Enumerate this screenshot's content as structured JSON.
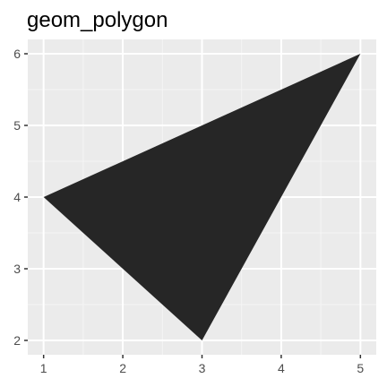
{
  "chart_data": {
    "type": "polygon",
    "title": "geom_polygon",
    "xlabel": "",
    "ylabel": "",
    "xlim": [
      0.8,
      5.2
    ],
    "ylim": [
      1.8,
      6.2
    ],
    "x_ticks": [
      1,
      2,
      3,
      4,
      5
    ],
    "y_ticks": [
      2,
      3,
      4,
      5,
      6
    ],
    "x_minor_ticks": [
      1.5,
      2.5,
      3.5,
      4.5
    ],
    "y_minor_ticks": [
      2.5,
      3.5,
      4.5,
      5.5
    ],
    "grid": true,
    "polygon": {
      "points": [
        {
          "x": 1,
          "y": 4
        },
        {
          "x": 5,
          "y": 6
        },
        {
          "x": 3,
          "y": 2
        }
      ],
      "fill": "#262626"
    },
    "colors": {
      "panel_background": "#ebebeb",
      "grid_major": "#ffffff",
      "grid_minor": "#f5f5f5",
      "tick": "#333333",
      "tick_label": "#4d4d4d"
    }
  }
}
